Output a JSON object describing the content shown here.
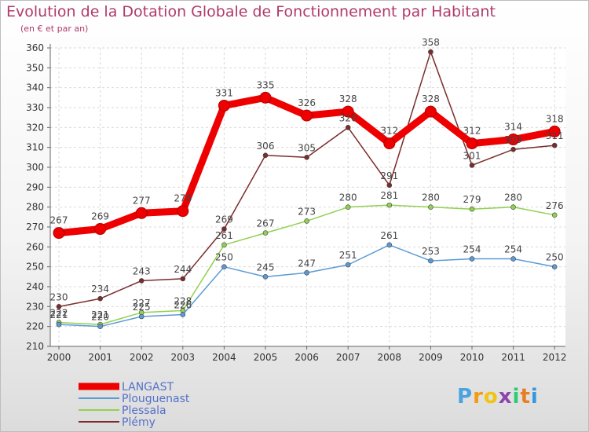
{
  "header": {
    "title": "Evolution de la Dotation Globale de Fonctionnement par Habitant",
    "subtitle": "(en € et par an)"
  },
  "brand": {
    "letters": [
      "P",
      "r",
      "o",
      "x",
      "i",
      "t",
      "i"
    ],
    "colors": [
      "#4aa3df",
      "#f39c12",
      "#f1c40f",
      "#8e44ad",
      "#2ecc71",
      "#e67e22",
      "#3498db"
    ]
  },
  "chart_data": {
    "type": "line",
    "x": [
      "2000",
      "2001",
      "2002",
      "2003",
      "2004",
      "2005",
      "2006",
      "2007",
      "2008",
      "2009",
      "2010",
      "2011",
      "2012"
    ],
    "ylim": [
      210,
      360
    ],
    "yticks": [
      210,
      220,
      230,
      240,
      250,
      260,
      270,
      280,
      290,
      300,
      310,
      320,
      330,
      340,
      350,
      360
    ],
    "grid": true,
    "legend_position": "bottom-left",
    "series": [
      {
        "name": "LANGAST",
        "color": "#ee0000",
        "width": 9,
        "marker": 7,
        "values": [
          267,
          269,
          277,
          278,
          331,
          335,
          326,
          328,
          312,
          328,
          312,
          314,
          318
        ],
        "labels": [
          "267",
          "269",
          "277",
          "278",
          "331",
          "335",
          "326",
          "328",
          "312",
          "328",
          "312",
          "314",
          "318"
        ]
      },
      {
        "name": "Plouguenast",
        "color": "#5b9bd5",
        "width": 1.5,
        "marker": 3,
        "values": [
          221,
          220,
          225,
          226,
          250,
          245,
          247,
          251,
          261,
          253,
          254,
          254,
          250
        ],
        "labels": [
          "221",
          "220",
          "225",
          "226",
          "250",
          "245",
          "247",
          "251",
          "261",
          "253",
          "254",
          "254",
          "250"
        ]
      },
      {
        "name": "Plessala",
        "color": "#92d050",
        "width": 1.5,
        "marker": 3,
        "values": [
          222,
          221,
          227,
          228,
          261,
          267,
          273,
          280,
          281,
          280,
          279,
          280,
          276
        ],
        "labels": [
          "222",
          "221",
          "227",
          "228",
          "261",
          "267",
          "273",
          "280",
          "281",
          "280",
          "279",
          "280",
          "276"
        ]
      },
      {
        "name": "Plémy",
        "color": "#7b2c2c",
        "width": 1.5,
        "marker": 3,
        "values": [
          230,
          234,
          243,
          244,
          269,
          306,
          305,
          320,
          291,
          358,
          301,
          309,
          311
        ],
        "labels": [
          "230",
          "234",
          "243",
          "244",
          "269",
          "306",
          "305",
          "320",
          "291",
          "358",
          "301",
          "309",
          "311"
        ]
      }
    ]
  }
}
